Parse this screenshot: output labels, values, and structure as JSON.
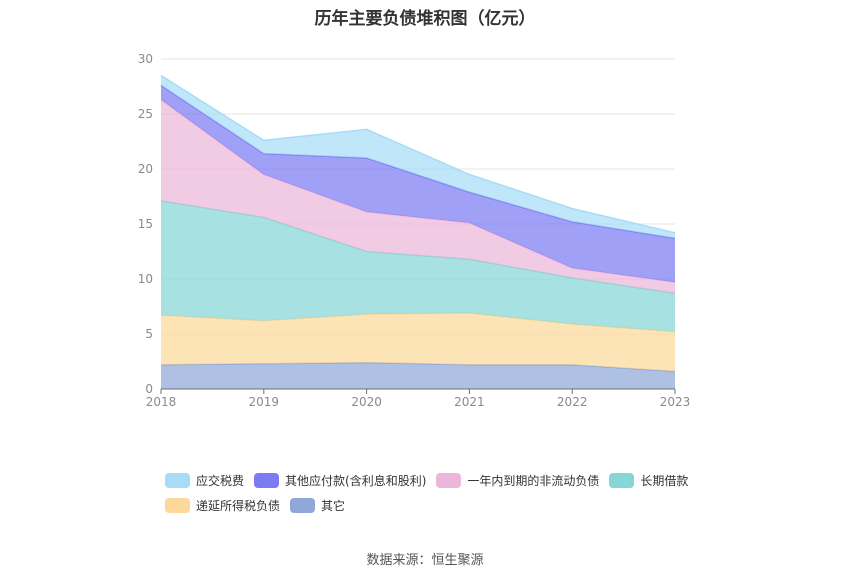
{
  "chart_data": {
    "type": "area",
    "stacked": true,
    "title": "历年主要负债堆积图（亿元）",
    "x": [
      "2018",
      "2019",
      "2020",
      "2021",
      "2022",
      "2023"
    ],
    "ylim": [
      0,
      30
    ],
    "yticks": [
      0,
      5,
      10,
      15,
      20,
      25,
      30
    ],
    "grid": true,
    "legend_position": "bottom",
    "series": [
      {
        "name": "其它",
        "color": "#8fa8d8",
        "values": [
          2.2,
          2.3,
          2.4,
          2.2,
          2.2,
          1.6
        ]
      },
      {
        "name": "递延所得税负债",
        "color": "#fcd99a",
        "values": [
          4.5,
          3.9,
          4.4,
          4.7,
          3.7,
          3.6
        ]
      },
      {
        "name": "长期借款",
        "color": "#86d6d6",
        "values": [
          10.4,
          9.4,
          5.7,
          4.9,
          4.2,
          3.5
        ]
      },
      {
        "name": "一年内到期的非流动负债",
        "color": "#ebb6da",
        "values": [
          9.2,
          3.9,
          3.6,
          3.3,
          0.9,
          1.0
        ]
      },
      {
        "name": "其他应付款(含利息和股利)",
        "color": "#7b7cf2",
        "values": [
          1.3,
          1.9,
          4.9,
          2.8,
          4.2,
          4.0
        ]
      },
      {
        "name": "应交税费",
        "color": "#a8dcf6",
        "values": [
          0.9,
          1.2,
          2.6,
          1.6,
          1.2,
          0.5
        ]
      }
    ],
    "legend_order": [
      "应交税费",
      "其他应付款(含利息和股利)",
      "一年内到期的非流动负债",
      "长期借款",
      "递延所得税负债",
      "其它"
    ],
    "source": "数据来源：恒生聚源"
  }
}
